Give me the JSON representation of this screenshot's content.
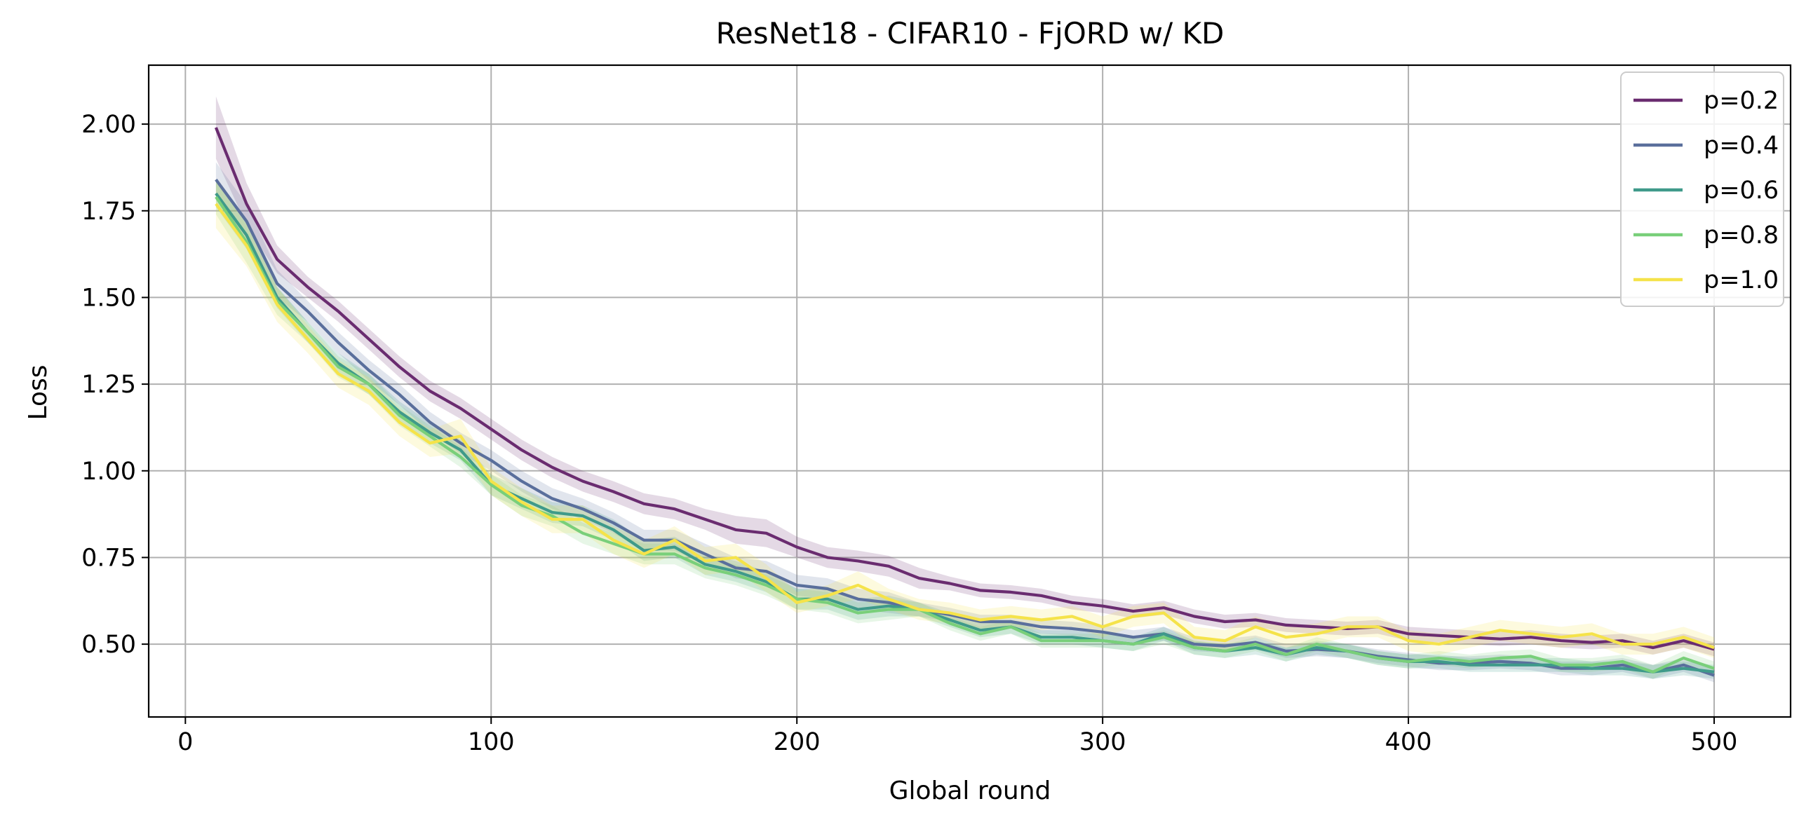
{
  "chart_data": {
    "type": "line",
    "title": "ResNet18 - CIFAR10 - FjORD w/ KD",
    "xlabel": "Global round",
    "ylabel": "Loss",
    "xlim": [
      -12,
      525
    ],
    "ylim": [
      0.29,
      2.17
    ],
    "xticks": [
      0,
      100,
      200,
      300,
      400,
      500
    ],
    "xtick_labels": [
      "0",
      "100",
      "200",
      "300",
      "400",
      "500"
    ],
    "yticks": [
      0.5,
      0.75,
      1.0,
      1.25,
      1.5,
      1.75,
      2.0
    ],
    "ytick_labels": [
      "0.50",
      "0.75",
      "1.00",
      "1.25",
      "1.50",
      "1.75",
      "2.00"
    ],
    "grid": true,
    "legend_position": "top-right",
    "shaded_band": true,
    "x": [
      10,
      20,
      30,
      40,
      50,
      60,
      70,
      80,
      90,
      100,
      110,
      120,
      130,
      140,
      150,
      160,
      170,
      180,
      190,
      200,
      210,
      220,
      230,
      240,
      250,
      260,
      270,
      280,
      290,
      300,
      310,
      320,
      330,
      340,
      350,
      360,
      370,
      380,
      390,
      400,
      410,
      420,
      430,
      440,
      450,
      460,
      470,
      480,
      490,
      500
    ],
    "series": [
      {
        "name": "p=0.2",
        "color": "#6a2c70",
        "values": [
          1.99,
          1.77,
          1.61,
          1.53,
          1.46,
          1.38,
          1.3,
          1.23,
          1.18,
          1.12,
          1.06,
          1.01,
          0.97,
          0.94,
          0.905,
          0.89,
          0.86,
          0.83,
          0.82,
          0.78,
          0.75,
          0.74,
          0.725,
          0.69,
          0.675,
          0.655,
          0.65,
          0.64,
          0.62,
          0.61,
          0.595,
          0.605,
          0.58,
          0.565,
          0.57,
          0.555,
          0.55,
          0.545,
          0.55,
          0.53,
          0.525,
          0.52,
          0.515,
          0.52,
          0.51,
          0.505,
          0.51,
          0.49,
          0.51,
          0.485
        ],
        "band": [
          0.09,
          0.06,
          0.04,
          0.03,
          0.03,
          0.03,
          0.03,
          0.03,
          0.03,
          0.03,
          0.03,
          0.03,
          0.03,
          0.03,
          0.03,
          0.03,
          0.03,
          0.04,
          0.04,
          0.03,
          0.03,
          0.03,
          0.03,
          0.03,
          0.02,
          0.02,
          0.02,
          0.02,
          0.02,
          0.02,
          0.02,
          0.02,
          0.02,
          0.02,
          0.02,
          0.02,
          0.02,
          0.02,
          0.02,
          0.02,
          0.02,
          0.02,
          0.02,
          0.02,
          0.02,
          0.02,
          0.02,
          0.02,
          0.02,
          0.02
        ]
      },
      {
        "name": "p=0.4",
        "color": "#5a6f9c",
        "values": [
          1.84,
          1.72,
          1.54,
          1.46,
          1.37,
          1.29,
          1.22,
          1.14,
          1.08,
          1.03,
          0.97,
          0.92,
          0.89,
          0.85,
          0.8,
          0.8,
          0.76,
          0.72,
          0.71,
          0.67,
          0.66,
          0.63,
          0.62,
          0.6,
          0.585,
          0.565,
          0.565,
          0.55,
          0.545,
          0.535,
          0.52,
          0.53,
          0.5,
          0.495,
          0.505,
          0.48,
          0.485,
          0.48,
          0.465,
          0.455,
          0.445,
          0.445,
          0.45,
          0.445,
          0.43,
          0.43,
          0.44,
          0.42,
          0.44,
          0.41
        ],
        "band": [
          0.05,
          0.05,
          0.04,
          0.03,
          0.03,
          0.03,
          0.03,
          0.03,
          0.03,
          0.03,
          0.03,
          0.03,
          0.03,
          0.03,
          0.03,
          0.03,
          0.03,
          0.03,
          0.03,
          0.03,
          0.03,
          0.03,
          0.03,
          0.02,
          0.02,
          0.02,
          0.02,
          0.02,
          0.02,
          0.02,
          0.02,
          0.02,
          0.02,
          0.02,
          0.02,
          0.02,
          0.02,
          0.02,
          0.02,
          0.02,
          0.02,
          0.02,
          0.02,
          0.02,
          0.02,
          0.02,
          0.02,
          0.02,
          0.02,
          0.02
        ]
      },
      {
        "name": "p=0.6",
        "color": "#3f9a8a",
        "values": [
          1.8,
          1.68,
          1.5,
          1.4,
          1.31,
          1.25,
          1.17,
          1.11,
          1.06,
          0.96,
          0.92,
          0.88,
          0.87,
          0.83,
          0.77,
          0.78,
          0.73,
          0.71,
          0.68,
          0.63,
          0.63,
          0.6,
          0.61,
          0.6,
          0.57,
          0.54,
          0.55,
          0.52,
          0.52,
          0.51,
          0.5,
          0.53,
          0.49,
          0.48,
          0.49,
          0.47,
          0.49,
          0.48,
          0.46,
          0.45,
          0.45,
          0.44,
          0.44,
          0.44,
          0.44,
          0.43,
          0.43,
          0.42,
          0.43,
          0.42
        ],
        "band": [
          0.04,
          0.04,
          0.03,
          0.03,
          0.03,
          0.03,
          0.03,
          0.03,
          0.03,
          0.03,
          0.03,
          0.03,
          0.03,
          0.03,
          0.03,
          0.03,
          0.03,
          0.03,
          0.03,
          0.03,
          0.03,
          0.03,
          0.03,
          0.02,
          0.02,
          0.02,
          0.02,
          0.02,
          0.02,
          0.02,
          0.02,
          0.02,
          0.02,
          0.02,
          0.02,
          0.02,
          0.02,
          0.02,
          0.02,
          0.02,
          0.02,
          0.02,
          0.02,
          0.02,
          0.02,
          0.02,
          0.02,
          0.02,
          0.02,
          0.02
        ]
      },
      {
        "name": "p=0.8",
        "color": "#79cf7a",
        "values": [
          1.79,
          1.66,
          1.49,
          1.4,
          1.3,
          1.25,
          1.16,
          1.1,
          1.04,
          0.96,
          0.9,
          0.87,
          0.82,
          0.79,
          0.76,
          0.76,
          0.72,
          0.7,
          0.67,
          0.63,
          0.62,
          0.59,
          0.6,
          0.6,
          0.56,
          0.53,
          0.55,
          0.51,
          0.51,
          0.51,
          0.5,
          0.52,
          0.49,
          0.48,
          0.5,
          0.47,
          0.5,
          0.48,
          0.46,
          0.45,
          0.46,
          0.45,
          0.46,
          0.465,
          0.44,
          0.44,
          0.45,
          0.42,
          0.46,
          0.43
        ],
        "band": [
          0.05,
          0.06,
          0.04,
          0.03,
          0.03,
          0.03,
          0.03,
          0.03,
          0.03,
          0.03,
          0.03,
          0.03,
          0.03,
          0.03,
          0.03,
          0.03,
          0.03,
          0.03,
          0.03,
          0.03,
          0.03,
          0.03,
          0.03,
          0.02,
          0.02,
          0.02,
          0.02,
          0.02,
          0.02,
          0.02,
          0.02,
          0.02,
          0.02,
          0.02,
          0.02,
          0.02,
          0.02,
          0.02,
          0.02,
          0.02,
          0.02,
          0.02,
          0.02,
          0.02,
          0.02,
          0.02,
          0.02,
          0.02,
          0.02,
          0.02
        ]
      },
      {
        "name": "p=1.0",
        "color": "#f5e34a",
        "values": [
          1.77,
          1.65,
          1.48,
          1.38,
          1.28,
          1.23,
          1.14,
          1.08,
          1.1,
          0.97,
          0.91,
          0.86,
          0.86,
          0.8,
          0.76,
          0.8,
          0.74,
          0.75,
          0.69,
          0.62,
          0.64,
          0.67,
          0.63,
          0.6,
          0.59,
          0.57,
          0.58,
          0.57,
          0.58,
          0.55,
          0.58,
          0.59,
          0.52,
          0.51,
          0.55,
          0.52,
          0.53,
          0.55,
          0.55,
          0.51,
          0.5,
          0.52,
          0.54,
          0.53,
          0.52,
          0.53,
          0.5,
          0.5,
          0.52,
          0.49
        ],
        "band": [
          0.07,
          0.06,
          0.05,
          0.04,
          0.04,
          0.04,
          0.04,
          0.04,
          0.05,
          0.04,
          0.04,
          0.04,
          0.04,
          0.04,
          0.04,
          0.04,
          0.04,
          0.04,
          0.04,
          0.03,
          0.03,
          0.04,
          0.03,
          0.03,
          0.03,
          0.03,
          0.03,
          0.03,
          0.03,
          0.03,
          0.03,
          0.03,
          0.03,
          0.03,
          0.03,
          0.03,
          0.03,
          0.03,
          0.03,
          0.03,
          0.03,
          0.03,
          0.03,
          0.03,
          0.03,
          0.03,
          0.03,
          0.03,
          0.03,
          0.03
        ]
      }
    ]
  }
}
